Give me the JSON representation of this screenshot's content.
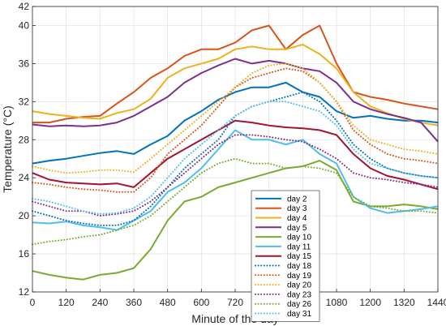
{
  "chart_data": {
    "type": "line",
    "title": "",
    "xlabel": "Minute of the day",
    "ylabel": "Temperature (°C)",
    "xlim": [
      0,
      1440
    ],
    "ylim": [
      12,
      42
    ],
    "xticks": [
      0,
      120,
      240,
      360,
      480,
      600,
      720,
      840,
      960,
      1080,
      1200,
      1320,
      1440
    ],
    "yticks": [
      12,
      16,
      20,
      24,
      28,
      32,
      36,
      40,
      42
    ],
    "grid": true,
    "legend_position": "bottom-center",
    "series": [
      {
        "name": "day 2",
        "color": "#0072BD",
        "dash": "solid",
        "x": [
          0,
          60,
          120,
          180,
          240,
          300,
          360,
          420,
          480,
          540,
          600,
          660,
          720,
          780,
          840,
          900,
          960,
          1020,
          1080,
          1140,
          1200,
          1260,
          1320,
          1380,
          1440
        ],
        "y": [
          25.5,
          25.8,
          26,
          26.3,
          26.6,
          26.8,
          26.5,
          27.5,
          28.4,
          30,
          31,
          32.2,
          33,
          33.5,
          33.5,
          34,
          33,
          32.5,
          31,
          30.3,
          30.5,
          30.2,
          30,
          30,
          29.8
        ]
      },
      {
        "name": "day 3",
        "color": "#D95319",
        "dash": "solid",
        "x": [
          0,
          60,
          120,
          180,
          240,
          300,
          360,
          420,
          480,
          540,
          600,
          660,
          720,
          780,
          840,
          900,
          960,
          1020,
          1080,
          1140,
          1200,
          1260,
          1320,
          1380,
          1440
        ],
        "y": [
          29.8,
          29.8,
          30.2,
          30.4,
          30.5,
          31.8,
          33,
          34.5,
          35.5,
          36.8,
          37.5,
          37.5,
          38.2,
          39.5,
          40,
          37.5,
          39,
          40,
          36,
          33,
          32.5,
          32.2,
          31.8,
          31.5,
          31.2
        ]
      },
      {
        "name": "day 4",
        "color": "#EDB120",
        "dash": "solid",
        "x": [
          0,
          60,
          120,
          180,
          240,
          300,
          360,
          420,
          480,
          540,
          600,
          660,
          720,
          780,
          840,
          900,
          960,
          1020,
          1080,
          1140,
          1200,
          1260,
          1320,
          1380,
          1440
        ],
        "y": [
          31,
          30.7,
          30.5,
          30.3,
          30.2,
          30.8,
          31.2,
          32.3,
          34.5,
          35.5,
          36,
          36.5,
          37.5,
          37.8,
          37.5,
          37.5,
          38,
          37,
          35.5,
          33,
          31.5,
          30.8,
          30.2,
          29.8,
          29.5
        ]
      },
      {
        "name": "day 5",
        "color": "#7E2F8E",
        "dash": "solid",
        "x": [
          0,
          60,
          120,
          180,
          240,
          300,
          360,
          420,
          480,
          540,
          600,
          660,
          720,
          780,
          840,
          900,
          960,
          1020,
          1080,
          1140,
          1200,
          1260,
          1320,
          1380,
          1440
        ],
        "y": [
          29.6,
          29.4,
          29.5,
          29.4,
          29.5,
          29.8,
          30.5,
          31.5,
          32.5,
          34,
          35,
          35.8,
          36.5,
          36,
          36.3,
          36,
          35.5,
          35.2,
          34,
          32,
          31.2,
          30.7,
          30.3,
          29.8,
          27.8
        ]
      },
      {
        "name": "day 10",
        "color": "#77AC30",
        "dash": "solid",
        "x": [
          0,
          60,
          120,
          180,
          240,
          300,
          360,
          420,
          480,
          540,
          600,
          660,
          720,
          780,
          840,
          900,
          960,
          1020,
          1080,
          1140,
          1200,
          1260,
          1320,
          1380,
          1440
        ],
        "y": [
          14.2,
          13.8,
          13.5,
          13.3,
          13.8,
          14,
          14.5,
          16.5,
          19.5,
          21.5,
          22,
          23,
          23.5,
          24,
          24.5,
          25,
          25.2,
          25.8,
          24.8,
          21.5,
          21,
          21,
          21.2,
          21,
          20.7
        ]
      },
      {
        "name": "day 11",
        "color": "#4DBEEE",
        "dash": "solid",
        "x": [
          0,
          60,
          120,
          180,
          240,
          300,
          360,
          420,
          480,
          540,
          600,
          660,
          720,
          780,
          840,
          900,
          960,
          1020,
          1080,
          1140,
          1200,
          1260,
          1320,
          1380,
          1440
        ],
        "y": [
          19.3,
          19.2,
          19.4,
          19,
          18.8,
          18.5,
          19.5,
          20.5,
          22.5,
          23.5,
          25,
          27,
          29,
          28,
          28,
          27.5,
          28,
          26.5,
          25.5,
          22,
          20.8,
          20.3,
          20.5,
          20.7,
          21
        ]
      },
      {
        "name": "day 15",
        "color": "#A2142F",
        "dash": "solid",
        "x": [
          0,
          60,
          120,
          180,
          240,
          300,
          360,
          420,
          480,
          540,
          600,
          660,
          720,
          780,
          840,
          900,
          960,
          1020,
          1080,
          1140,
          1200,
          1260,
          1320,
          1380,
          1440
        ],
        "y": [
          24.5,
          23.8,
          23.5,
          23.4,
          23.3,
          23.4,
          23,
          24.5,
          26,
          27,
          28,
          29,
          30,
          29.8,
          29.5,
          29.3,
          29.2,
          29,
          28.5,
          26.5,
          25,
          24.2,
          23.8,
          23.3,
          22.8
        ]
      },
      {
        "name": "day 18",
        "color": "#0072BD",
        "dash": "dotted",
        "x": [
          0,
          60,
          120,
          180,
          240,
          300,
          360,
          420,
          480,
          540,
          600,
          660,
          720,
          780,
          840,
          900,
          960,
          1020,
          1080,
          1140,
          1200,
          1260,
          1320,
          1380,
          1440
        ],
        "y": [
          20.5,
          20,
          19.5,
          19.2,
          19,
          19,
          19.5,
          21,
          23,
          25,
          26.5,
          28,
          30.5,
          31.5,
          32,
          32.5,
          33,
          32,
          30,
          27.5,
          26,
          25,
          24.5,
          24.2,
          24
        ]
      },
      {
        "name": "day 19",
        "color": "#D95319",
        "dash": "dotted",
        "x": [
          0,
          60,
          120,
          180,
          240,
          300,
          360,
          420,
          480,
          540,
          600,
          660,
          720,
          780,
          840,
          900,
          960,
          1020,
          1080,
          1140,
          1200,
          1260,
          1320,
          1380,
          1440
        ],
        "y": [
          23.5,
          23.3,
          23,
          22.8,
          22.7,
          22.5,
          22.5,
          24,
          26.5,
          28,
          29.5,
          31.5,
          33.5,
          34.5,
          35,
          35.5,
          35.2,
          34,
          32,
          29,
          27.5,
          26.5,
          26,
          25.8,
          25.5
        ]
      },
      {
        "name": "day 20",
        "color": "#EDB120",
        "dash": "dotted",
        "x": [
          0,
          60,
          120,
          180,
          240,
          300,
          360,
          420,
          480,
          540,
          600,
          660,
          720,
          780,
          840,
          900,
          960,
          1020,
          1080,
          1140,
          1200,
          1260,
          1320,
          1380,
          1440
        ],
        "y": [
          25.2,
          24.8,
          24.5,
          24.6,
          24.8,
          24.8,
          24.6,
          26,
          27.5,
          29,
          30.5,
          32,
          33.5,
          35,
          35.8,
          36,
          35.5,
          34,
          32,
          29.5,
          28,
          27.5,
          27,
          26.8,
          26.5
        ]
      },
      {
        "name": "day 23",
        "color": "#7E2F8E",
        "dash": "dotted",
        "x": [
          0,
          60,
          120,
          180,
          240,
          300,
          360,
          420,
          480,
          540,
          600,
          660,
          720,
          780,
          840,
          900,
          960,
          1020,
          1080,
          1140,
          1200,
          1260,
          1320,
          1380,
          1440
        ],
        "y": [
          21.5,
          21,
          20.5,
          20.5,
          20,
          20.2,
          20.5,
          21.5,
          23,
          24.5,
          26,
          27.5,
          28.5,
          28.5,
          28.3,
          28,
          27.8,
          27,
          26,
          24.5,
          24,
          23.8,
          23.5,
          23.3,
          23
        ]
      },
      {
        "name": "day 26",
        "color": "#77AC30",
        "dash": "dotted",
        "x": [
          0,
          60,
          120,
          180,
          240,
          300,
          360,
          420,
          480,
          540,
          600,
          660,
          720,
          780,
          840,
          900,
          960,
          1020,
          1080,
          1140,
          1200,
          1260,
          1320,
          1380,
          1440
        ],
        "y": [
          17,
          17.3,
          17.5,
          17.8,
          18,
          18.5,
          19,
          20,
          21.5,
          23,
          24.5,
          25.5,
          26,
          25.5,
          25.5,
          25,
          25.2,
          25,
          24.5,
          22,
          21,
          20.8,
          20.5,
          20.5,
          20.3
        ]
      },
      {
        "name": "day 31",
        "color": "#4DBEEE",
        "dash": "dotted",
        "x": [
          0,
          60,
          120,
          180,
          240,
          300,
          360,
          420,
          480,
          540,
          600,
          660,
          720,
          780,
          840,
          900,
          960,
          1020,
          1080,
          1140,
          1200,
          1260,
          1320,
          1380,
          1440
        ],
        "y": [
          21.8,
          21.5,
          21,
          20.5,
          20.2,
          20.3,
          20.8,
          22,
          24,
          26,
          27.5,
          29,
          30.5,
          31.5,
          32,
          32,
          31.5,
          31,
          29.5,
          27,
          25.5,
          25,
          24.5,
          24.2,
          24
        ]
      }
    ]
  }
}
